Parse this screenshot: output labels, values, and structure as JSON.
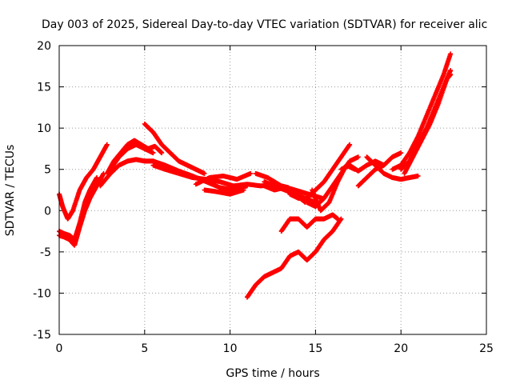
{
  "chart_data": {
    "type": "scatter",
    "title": "Day 003 of 2025, Sidereal Day-to-day VTEC variation (SDTVAR) for receiver alic",
    "xlabel": "GPS time / hours",
    "ylabel": "SDTVAR / TECUs",
    "xlim": [
      0,
      25
    ],
    "ylim": [
      -15,
      20
    ],
    "xticks": [
      0,
      5,
      10,
      15,
      20,
      25
    ],
    "yticks": [
      -15,
      -10,
      -5,
      0,
      5,
      10,
      15,
      20
    ],
    "grid": true,
    "series": [
      {
        "color": "#ff0000",
        "marker": "plus",
        "tracks": [
          {
            "x": [
              0.0,
              0.2,
              0.5,
              0.8,
              1.2,
              1.6,
              2.0,
              2.4,
              2.8
            ],
            "y": [
              2.0,
              0.5,
              -1.0,
              0.0,
              2.5,
              4.0,
              5.0,
              6.5,
              8.0
            ]
          },
          {
            "x": [
              0.0,
              0.3,
              0.6,
              0.9,
              1.2,
              1.5,
              1.8,
              2.2,
              2.6
            ],
            "y": [
              -3.0,
              -3.2,
              -3.5,
              -4.2,
              -2.0,
              0.0,
              1.5,
              3.0,
              4.5
            ]
          },
          {
            "x": [
              0.0,
              0.3,
              0.6,
              0.9,
              1.2,
              1.5,
              1.8,
              2.2
            ],
            "y": [
              -2.5,
              -2.8,
              -3.0,
              -3.5,
              -1.5,
              1.0,
              2.5,
              4.0
            ]
          },
          {
            "x": [
              2.8,
              3.2,
              3.6,
              4.0,
              4.4,
              4.8,
              5.2,
              5.6,
              6.0
            ],
            "y": [
              4.5,
              6.0,
              7.0,
              8.0,
              8.5,
              8.0,
              7.5,
              7.8,
              7.0
            ]
          },
          {
            "x": [
              2.4,
              3.0,
              3.5,
              4.0,
              4.5,
              5.0,
              5.5,
              6.0
            ],
            "y": [
              3.0,
              4.5,
              5.5,
              6.0,
              6.2,
              6.0,
              6.0,
              5.5
            ]
          },
          {
            "x": [
              3.0,
              3.5,
              4.0,
              4.5,
              5.0,
              5.5
            ],
            "y": [
              5.0,
              6.5,
              7.5,
              8.0,
              7.5,
              7.0
            ]
          },
          {
            "x": [
              5.0,
              5.5,
              6.0,
              6.5,
              7.0,
              7.5,
              8.0,
              8.5
            ],
            "y": [
              10.5,
              9.5,
              8.0,
              7.0,
              6.0,
              5.5,
              5.0,
              4.5
            ]
          },
          {
            "x": [
              5.5,
              6.2,
              7.0,
              7.8,
              8.6,
              9.4,
              10.2,
              11.0,
              11.8,
              12.6,
              13.4
            ],
            "y": [
              5.5,
              5.0,
              4.5,
              4.0,
              3.8,
              3.5,
              3.0,
              3.2,
              3.0,
              3.2,
              2.8
            ]
          },
          {
            "x": [
              5.5,
              6.2,
              7.0,
              7.8,
              8.6,
              9.4,
              10.2,
              11.0
            ],
            "y": [
              6.0,
              5.5,
              4.8,
              4.2,
              3.5,
              2.8,
              2.5,
              3.0
            ]
          },
          {
            "x": [
              8.0,
              8.8,
              9.6,
              10.4,
              11.2
            ],
            "y": [
              3.2,
              4.0,
              4.2,
              3.8,
              4.5
            ]
          },
          {
            "x": [
              8.5,
              9.2,
              10.0,
              10.8
            ],
            "y": [
              2.5,
              2.3,
              2.0,
              2.5
            ]
          },
          {
            "x": [
              11.5,
              12.2,
              13.0,
              13.8,
              14.6,
              15.4
            ],
            "y": [
              4.5,
              4.0,
              3.0,
              2.5,
              2.0,
              1.5
            ]
          },
          {
            "x": [
              12.0,
              12.6,
              13.2,
              13.8,
              14.4,
              15.0
            ],
            "y": [
              3.5,
              3.0,
              2.5,
              2.0,
              1.5,
              1.0
            ]
          },
          {
            "x": [
              12.0,
              12.6,
              13.2,
              13.8,
              14.4
            ],
            "y": [
              3.0,
              2.5,
              2.8,
              2.0,
              1.0
            ]
          },
          {
            "x": [
              13.5,
              14.0,
              14.5,
              15.0,
              15.5,
              16.0,
              16.5,
              17.0
            ],
            "y": [
              2.0,
              1.5,
              1.5,
              2.5,
              3.5,
              5.0,
              6.5,
              8.0
            ]
          },
          {
            "x": [
              14.5,
              15.0,
              15.5,
              16.0,
              16.5,
              17.0,
              17.5
            ],
            "y": [
              1.0,
              0.5,
              1.5,
              3.0,
              4.5,
              6.0,
              6.5
            ]
          },
          {
            "x": [
              14.8,
              15.3,
              15.8,
              16.3,
              16.8,
              17.3
            ],
            "y": [
              2.5,
              0.0,
              1.0,
              3.5,
              5.5,
              5.0
            ]
          },
          {
            "x": [
              16.5,
              17.0,
              17.5,
              18.0,
              18.5,
              19.0,
              19.5,
              20.0
            ],
            "y": [
              5.0,
              5.5,
              4.8,
              5.5,
              6.0,
              5.5,
              6.5,
              7.0
            ]
          },
          {
            "x": [
              18.0,
              18.5,
              19.0,
              19.5,
              20.0,
              20.5,
              21.0
            ],
            "y": [
              6.5,
              5.5,
              4.5,
              4.0,
              3.8,
              4.0,
              4.2
            ]
          },
          {
            "x": [
              17.5,
              18.0,
              18.5,
              19.0
            ],
            "y": [
              3.0,
              4.0,
              5.0,
              5.5
            ]
          },
          {
            "x": [
              13.0,
              13.5,
              14.0,
              14.5,
              15.0,
              15.5,
              16.0,
              16.3
            ],
            "y": [
              -2.5,
              -1.0,
              -1.0,
              -2.0,
              -1.0,
              -1.0,
              -0.5,
              -1.0
            ]
          },
          {
            "x": [
              11.0,
              11.5,
              12.0,
              12.5,
              13.0,
              13.5,
              14.0,
              14.5,
              15.0,
              15.5,
              16.0,
              16.5
            ],
            "y": [
              -10.5,
              -9.0,
              -8.0,
              -7.5,
              -7.0,
              -5.5,
              -5.0,
              -6.0,
              -5.0,
              -3.5,
              -2.5,
              -1.0
            ]
          },
          {
            "x": [
              19.5,
              20.0,
              20.5,
              21.0,
              21.5,
              22.0,
              22.5,
              22.9
            ],
            "y": [
              5.0,
              5.5,
              7.0,
              9.0,
              11.5,
              14.0,
              16.5,
              19.0
            ]
          },
          {
            "x": [
              20.0,
              20.5,
              21.0,
              21.5,
              22.0,
              22.5,
              22.9
            ],
            "y": [
              5.0,
              6.0,
              8.0,
              10.0,
              12.5,
              15.0,
              17.0
            ]
          },
          {
            "x": [
              20.2,
              20.7,
              21.2,
              21.7,
              22.2,
              22.7,
              22.9
            ],
            "y": [
              4.5,
              6.5,
              8.5,
              10.5,
              13.0,
              16.0,
              16.5
            ]
          }
        ]
      }
    ]
  }
}
